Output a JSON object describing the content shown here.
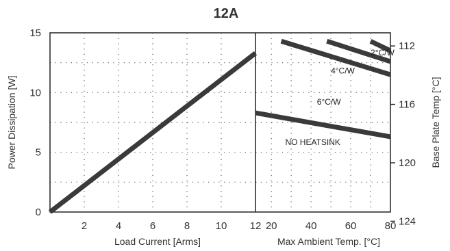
{
  "chart_data": {
    "type": "line",
    "title": "12A",
    "grid": true,
    "left_panel": {
      "xlabel": "Load Current  [Arms]",
      "ylabel": "Power Dissipation [W]",
      "xlim": [
        0,
        12
      ],
      "ylim": [
        0,
        15
      ],
      "x_ticks": [
        "2",
        "4",
        "6",
        "8",
        "10",
        "12"
      ],
      "y_ticks": [
        "0",
        "5",
        "10",
        "15"
      ],
      "series": [
        {
          "x": [
            0,
            12
          ],
          "y": [
            0,
            13.3
          ]
        }
      ]
    },
    "right_panel": {
      "xlabel": "Max Ambient Temp. [°C]",
      "ylabel": "Base Plate Temp [°C]",
      "xlim": [
        12,
        80
      ],
      "x_ticks": [
        "20",
        "40",
        "60",
        "80"
      ],
      "y2_ticks": [
        "112",
        "116",
        "120",
        "124"
      ],
      "series": [
        {
          "name": "NO HEATSINK",
          "x": [
            12,
            80
          ],
          "y": [
            8.3,
            6.3
          ]
        },
        {
          "name": "6°C/W",
          "x": [
            25,
            80
          ],
          "y": [
            14.3,
            11.5
          ]
        },
        {
          "name": "4°C/W",
          "x": [
            48,
            80
          ],
          "y": [
            14.3,
            12.6
          ]
        },
        {
          "name": "2°C/W",
          "x": [
            70,
            80
          ],
          "y": [
            14.3,
            13.5
          ]
        }
      ]
    }
  }
}
